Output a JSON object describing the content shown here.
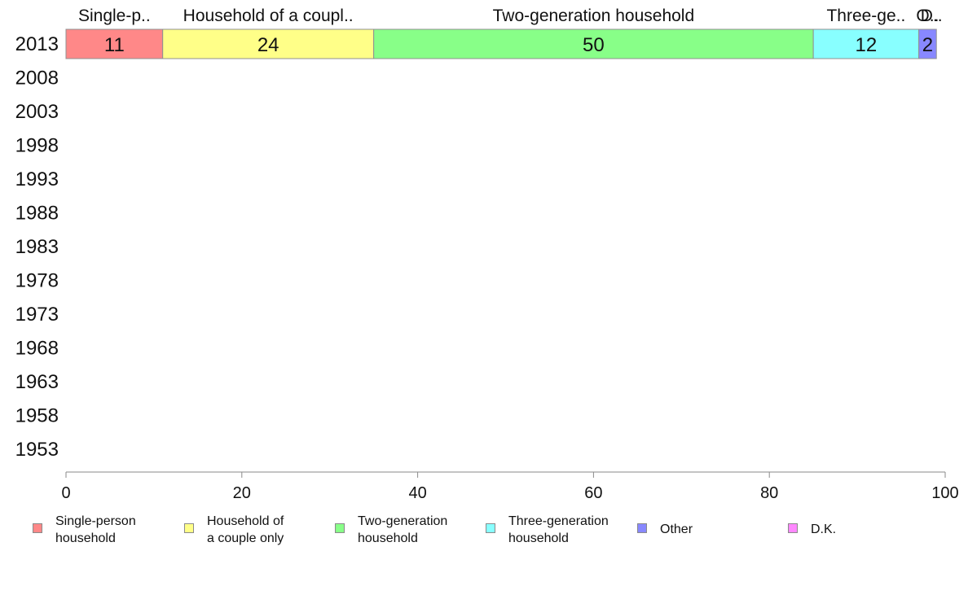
{
  "chart_data": {
    "type": "bar",
    "orientation": "horizontal",
    "stacked": true,
    "categories": [
      "2013",
      "2008",
      "2003",
      "1998",
      "1993",
      "1988",
      "1983",
      "1978",
      "1973",
      "1968",
      "1963",
      "1958",
      "1953"
    ],
    "series": [
      {
        "name": "Single-person household",
        "top_label": "Single-p..",
        "color": "#ff8888",
        "values": [
          11,
          null,
          null,
          null,
          null,
          null,
          null,
          null,
          null,
          null,
          null,
          null,
          null
        ]
      },
      {
        "name": "Household of a couple only",
        "top_label": "Household of a coupl..",
        "color": "#ffff88",
        "values": [
          24,
          null,
          null,
          null,
          null,
          null,
          null,
          null,
          null,
          null,
          null,
          null,
          null
        ]
      },
      {
        "name": "Two-generation household",
        "top_label": "Two-generation household",
        "color": "#88ff88",
        "values": [
          50,
          null,
          null,
          null,
          null,
          null,
          null,
          null,
          null,
          null,
          null,
          null,
          null
        ]
      },
      {
        "name": "Three-generation household",
        "top_label": "Three-ge..",
        "color": "#88ffff",
        "values": [
          12,
          null,
          null,
          null,
          null,
          null,
          null,
          null,
          null,
          null,
          null,
          null,
          null
        ]
      },
      {
        "name": "Other",
        "top_label": "O..",
        "color": "#8888ff",
        "values": [
          2,
          null,
          null,
          null,
          null,
          null,
          null,
          null,
          null,
          null,
          null,
          null,
          null
        ]
      },
      {
        "name": "D.K.",
        "top_label": "D..",
        "color": "#ff88ff",
        "values": [
          0,
          null,
          null,
          null,
          null,
          null,
          null,
          null,
          null,
          null,
          null,
          null,
          null
        ]
      }
    ],
    "legend_labels": [
      "Single-person\nhousehold",
      "Household of\na couple only",
      "Two-generation\nhousehold",
      "Three-generation\nhousehold",
      "Other",
      "D.K."
    ],
    "xlim": [
      0,
      100
    ],
    "xticks": [
      0,
      20,
      40,
      60,
      80,
      100
    ],
    "grid": false,
    "legend_position": "bottom",
    "title": "",
    "xlabel": "",
    "ylabel": ""
  }
}
